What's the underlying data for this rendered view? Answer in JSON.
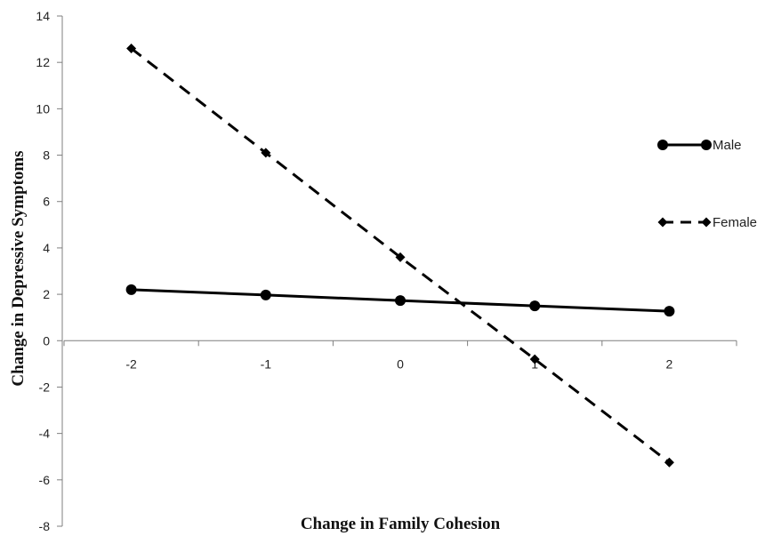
{
  "chart_data": {
    "type": "line",
    "xlabel": "Change in Family Cohesion",
    "ylabel": "Change in Depressive Symptoms",
    "x": [
      -2,
      -1,
      0,
      1,
      2
    ],
    "x_ticks": [
      "-2",
      "-1",
      "0",
      "1",
      "2"
    ],
    "y_ticks": [
      "14",
      "12",
      "10",
      "8",
      "6",
      "4",
      "2",
      "0",
      "-2",
      "-4",
      "-6",
      "-8"
    ],
    "ylim": [
      -8,
      14
    ],
    "xlim": [
      -2.5,
      2.5
    ],
    "grid": false,
    "legend_position": "right",
    "series": [
      {
        "name": "Male",
        "values": [
          2.2,
          1.97,
          1.73,
          1.5,
          1.27
        ],
        "style": "solid",
        "marker": "circle",
        "color": "#000000"
      },
      {
        "name": "Female",
        "values": [
          12.6,
          8.1,
          3.6,
          -0.8,
          -5.25
        ],
        "style": "dashed",
        "marker": "diamond",
        "color": "#000000"
      }
    ]
  }
}
